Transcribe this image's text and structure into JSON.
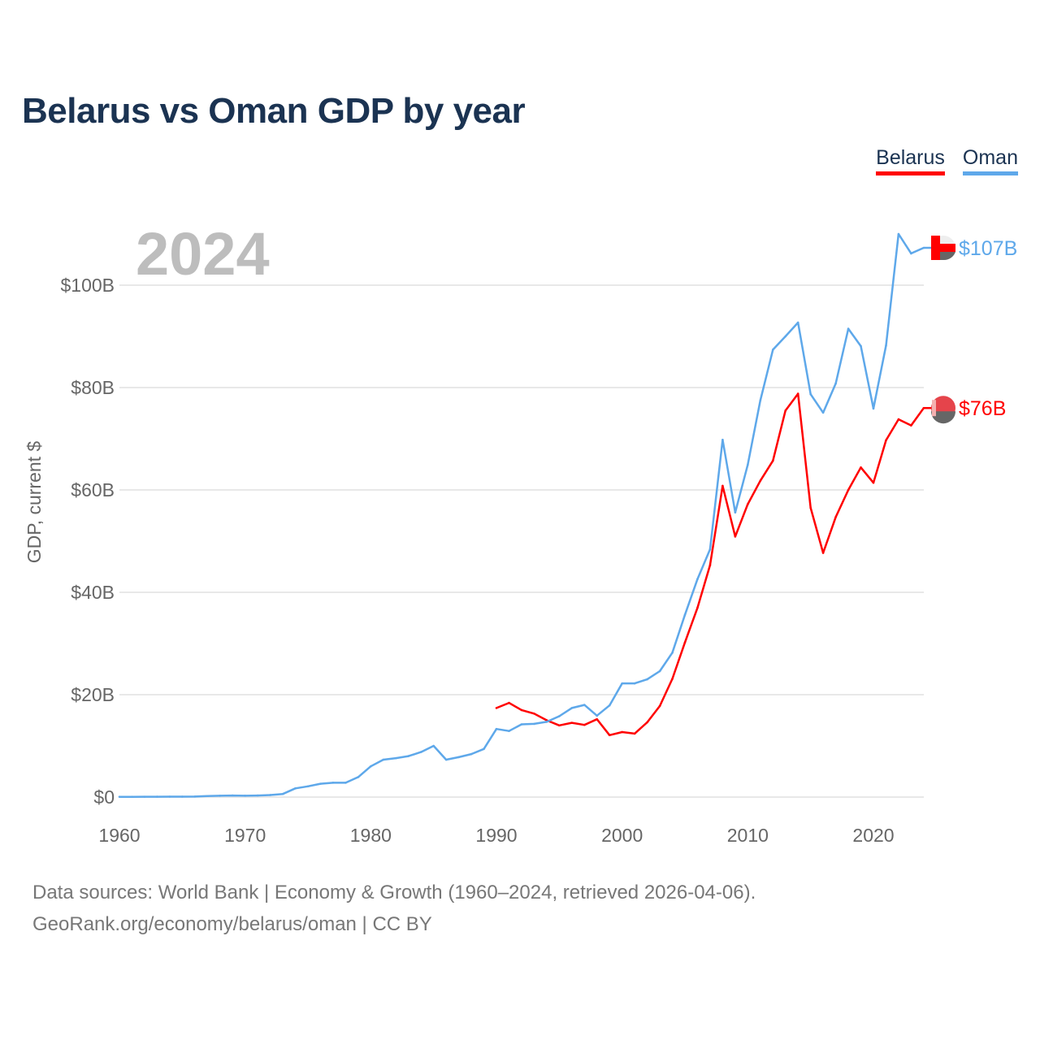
{
  "chart_data": {
    "type": "line",
    "title": "Belarus vs Oman GDP by year",
    "ylabel": "GDP, current $",
    "xlabel": "",
    "year_watermark": "2024",
    "xlim": [
      1960,
      2024
    ],
    "ylim": [
      0,
      110
    ],
    "x_ticks": [
      1960,
      1970,
      1980,
      1990,
      2000,
      2010,
      2020
    ],
    "x_tick_labels": [
      "1960",
      "1970",
      "1980",
      "1990",
      "2000",
      "2010",
      "2020"
    ],
    "y_ticks": [
      0,
      20,
      40,
      60,
      80,
      100
    ],
    "y_tick_labels": [
      "$0",
      "$20B",
      "$40B",
      "$60B",
      "$80B",
      "$100B"
    ],
    "grid": true,
    "legend_position": "top-right",
    "series": [
      {
        "name": "Belarus",
        "color": "#ff0000",
        "end_label": "$76B",
        "start_year": 1990,
        "values": [
          17.4,
          18.4,
          17.0,
          16.3,
          15.0,
          14.0,
          14.5,
          14.1,
          15.2,
          12.1,
          12.7,
          12.4,
          14.6,
          17.8,
          23.1,
          30.2,
          37.0,
          45.3,
          60.8,
          50.9,
          57.2,
          61.8,
          65.7,
          75.5,
          78.8,
          56.5,
          47.7,
          54.7,
          60.0,
          64.4,
          61.4,
          69.7,
          73.8,
          72.6,
          76.0
        ]
      },
      {
        "name": "Oman",
        "color": "#5ea8ea",
        "end_label": "$107B",
        "start_year": 1960,
        "values": [
          0.05,
          0.05,
          0.06,
          0.07,
          0.08,
          0.08,
          0.1,
          0.2,
          0.25,
          0.3,
          0.26,
          0.3,
          0.4,
          0.6,
          1.7,
          2.1,
          2.6,
          2.8,
          2.8,
          3.9,
          6.0,
          7.3,
          7.6,
          8.0,
          8.8,
          10.0,
          7.3,
          7.8,
          8.4,
          9.4,
          13.3,
          12.9,
          14.2,
          14.3,
          14.7,
          15.8,
          17.4,
          18.0,
          15.9,
          17.9,
          22.2,
          22.2,
          23.0,
          24.6,
          28.2,
          35.6,
          42.6,
          48.4,
          69.8,
          55.6,
          64.9,
          77.5,
          87.4,
          90.0,
          92.7,
          78.7,
          75.1,
          80.8,
          91.5,
          88.1,
          75.9,
          88.2,
          110.0,
          106.2,
          107.3
        ]
      }
    ]
  },
  "footer": {
    "line1": "Data sources: World Bank | Economy & Growth (1960–2024, retrieved 2026-04-06).",
    "line2": "GeoRank.org/economy/belarus/oman | CC BY"
  }
}
